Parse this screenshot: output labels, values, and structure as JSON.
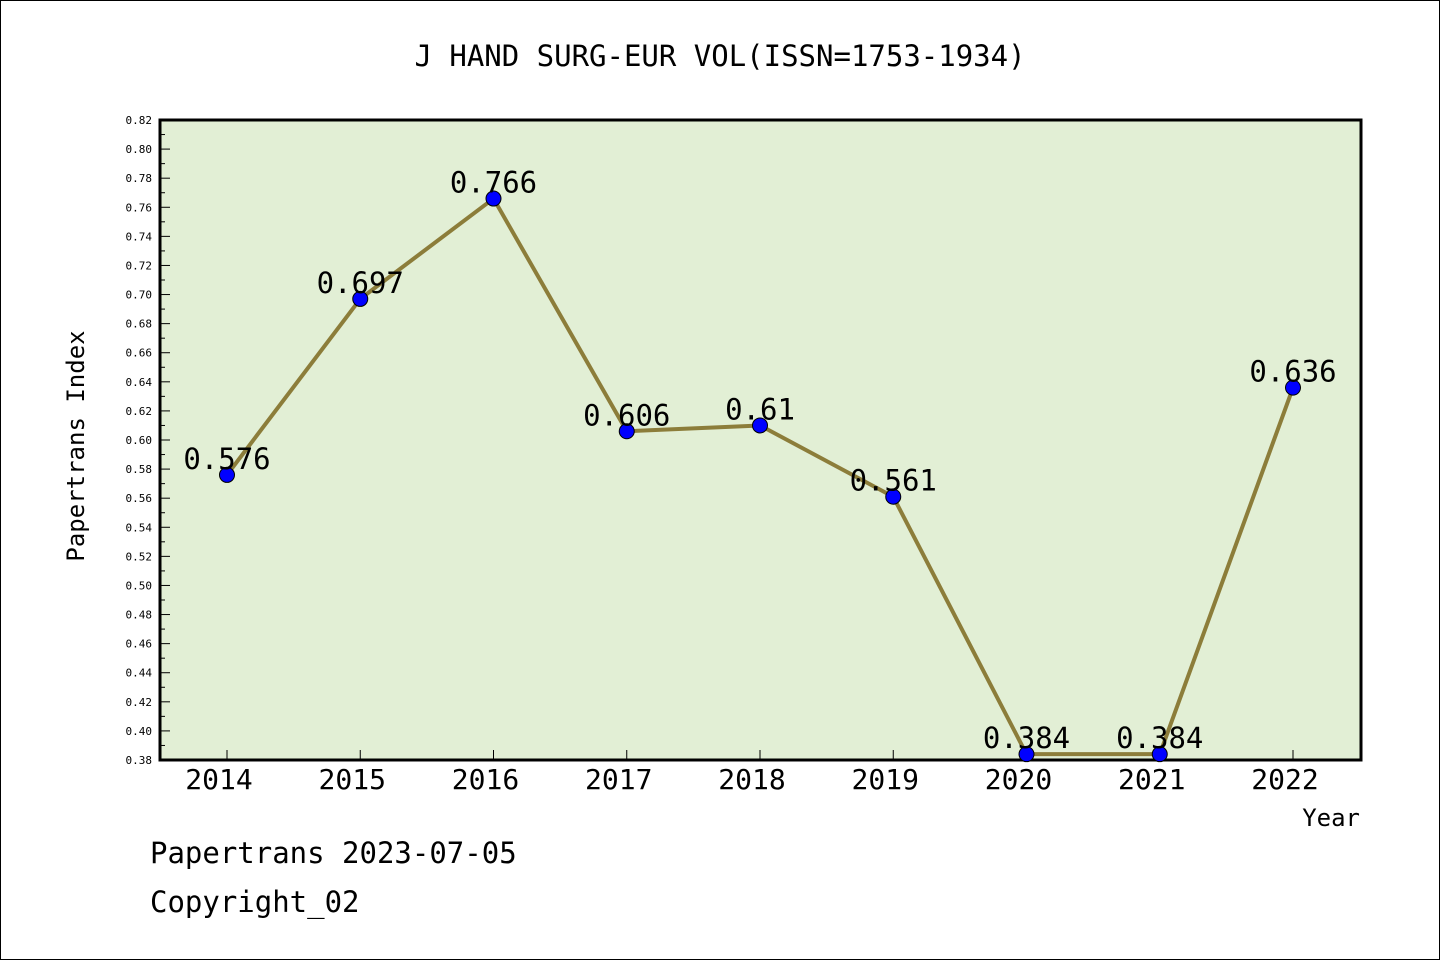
{
  "chart_data": {
    "type": "line",
    "title": "J HAND SURG-EUR VOL(ISSN=1753-1934)",
    "xlabel": "Year",
    "ylabel": "Papertrans Index",
    "categories": [
      "2014",
      "2015",
      "2016",
      "2017",
      "2018",
      "2019",
      "2020",
      "2021",
      "2022"
    ],
    "values": [
      0.576,
      0.697,
      0.766,
      0.606,
      0.61,
      0.561,
      0.384,
      0.384,
      0.636
    ],
    "data_labels": [
      "0.576",
      "0.697",
      "0.766",
      "0.606",
      "0.61",
      "0.561",
      "0.384",
      "0.384",
      "0.636"
    ],
    "ylim": [
      0.38,
      0.82
    ],
    "yticks": [
      "0.38",
      "0.40",
      "0.42",
      "0.44",
      "0.46",
      "0.48",
      "0.50",
      "0.52",
      "0.54",
      "0.56",
      "0.58",
      "0.60",
      "0.62",
      "0.64",
      "0.66",
      "0.68",
      "0.70",
      "0.72",
      "0.74",
      "0.76",
      "0.78",
      "0.80",
      "0.82"
    ],
    "grid": false,
    "colors": {
      "plot_background": "#e2efd5",
      "line": "#8c7d3a",
      "marker": "#0000ff"
    }
  },
  "footer": {
    "date_line": "Papertrans 2023-07-05",
    "copyright": "Copyright_02"
  }
}
